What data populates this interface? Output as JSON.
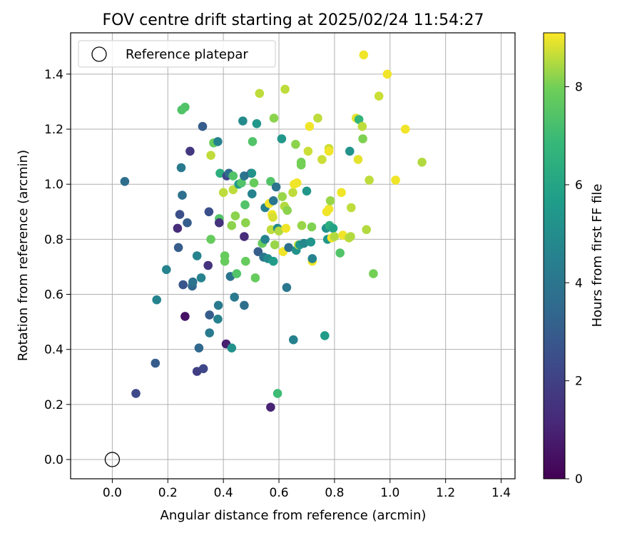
{
  "chart_data": {
    "type": "scatter",
    "title": "FOV centre drift starting at 2025/02/24 11:54:27",
    "xlabel": "Angular distance from reference (arcmin)",
    "ylabel": "Rotation from reference (arcmin)",
    "xlim": [
      -0.15,
      1.45
    ],
    "ylim": [
      -0.07,
      1.55
    ],
    "xticks": [
      0.0,
      0.2,
      0.4,
      0.6,
      0.8,
      1.0,
      1.2,
      1.4
    ],
    "xtick_labels": [
      "0.0",
      "0.2",
      "0.4",
      "0.6",
      "0.8",
      "1.0",
      "1.2",
      "1.4"
    ],
    "yticks": [
      0.0,
      0.2,
      0.4,
      0.6,
      0.8,
      1.0,
      1.2,
      1.4
    ],
    "ytick_labels": [
      "0.0",
      "0.2",
      "0.4",
      "0.6",
      "0.8",
      "1.0",
      "1.2",
      "1.4"
    ],
    "grid": true,
    "legend": {
      "position": "top-left",
      "entries": [
        {
          "label": "Reference platepar",
          "marker": "open-circle"
        }
      ]
    },
    "reference_point": {
      "x": 0.0,
      "y": 0.0
    },
    "colorbar": {
      "label": "Hours from first FF file",
      "colormap": "viridis",
      "range": [
        0,
        9.1
      ],
      "ticks": [
        0,
        2,
        4,
        6,
        8
      ],
      "tick_labels": [
        "0",
        "2",
        "4",
        "6",
        "8"
      ]
    },
    "points": [
      [
        0.045,
        1.01,
        3.7
      ],
      [
        0.085,
        0.24,
        2.3
      ],
      [
        0.155,
        0.35,
        3.0
      ],
      [
        0.16,
        0.58,
        4.6
      ],
      [
        0.195,
        0.69,
        4.6
      ],
      [
        0.235,
        0.84,
        1.3
      ],
      [
        0.238,
        0.77,
        3.0
      ],
      [
        0.243,
        0.89,
        2.5
      ],
      [
        0.248,
        1.06,
        4.2
      ],
      [
        0.25,
        1.27,
        7.4
      ],
      [
        0.252,
        0.96,
        3.7
      ],
      [
        0.255,
        0.635,
        2.7
      ],
      [
        0.262,
        1.28,
        7.4
      ],
      [
        0.262,
        0.52,
        0.5
      ],
      [
        0.27,
        0.86,
        3.0
      ],
      [
        0.28,
        1.12,
        1.7
      ],
      [
        0.288,
        0.63,
        3.4
      ],
      [
        0.29,
        0.645,
        3.9
      ],
      [
        0.305,
        0.74,
        4.6
      ],
      [
        0.305,
        0.32,
        1.9
      ],
      [
        0.312,
        0.405,
        3.4
      ],
      [
        0.32,
        0.66,
        4.6
      ],
      [
        0.325,
        1.21,
        3.0
      ],
      [
        0.328,
        0.33,
        2.2
      ],
      [
        0.345,
        0.705,
        1.5
      ],
      [
        0.348,
        0.9,
        2.5
      ],
      [
        0.35,
        0.525,
        3.0
      ],
      [
        0.35,
        0.46,
        4.2
      ],
      [
        0.355,
        0.8,
        7.8
      ],
      [
        0.355,
        1.105,
        8.6
      ],
      [
        0.365,
        1.15,
        7.8
      ],
      [
        0.38,
        1.155,
        4.6
      ],
      [
        0.38,
        0.51,
        4.6
      ],
      [
        0.382,
        0.56,
        4.2
      ],
      [
        0.385,
        0.875,
        7.4
      ],
      [
        0.385,
        0.86,
        1.5
      ],
      [
        0.388,
        1.04,
        6.4
      ],
      [
        0.4,
        0.97,
        8.6
      ],
      [
        0.405,
        0.72,
        7.8
      ],
      [
        0.405,
        0.74,
        7.8
      ],
      [
        0.41,
        0.42,
        0.9
      ],
      [
        0.412,
        1.03,
        2.2
      ],
      [
        0.42,
        1.04,
        3.6
      ],
      [
        0.425,
        0.665,
        3.9
      ],
      [
        0.43,
        0.85,
        8.2
      ],
      [
        0.43,
        0.405,
        5.2
      ],
      [
        0.435,
        0.98,
        8.6
      ],
      [
        0.435,
        1.03,
        7.4
      ],
      [
        0.44,
        0.59,
        4.2
      ],
      [
        0.443,
        0.885,
        8.2
      ],
      [
        0.448,
        0.675,
        7.4
      ],
      [
        0.455,
        1.0,
        5.6
      ],
      [
        0.465,
        1.005,
        7.4
      ],
      [
        0.47,
        1.23,
        4.9
      ],
      [
        0.475,
        1.03,
        3.9
      ],
      [
        0.475,
        0.81,
        1.3
      ],
      [
        0.475,
        0.56,
        3.7
      ],
      [
        0.478,
        0.925,
        7.4
      ],
      [
        0.48,
        0.72,
        7.8
      ],
      [
        0.48,
        0.86,
        8.2
      ],
      [
        0.5,
        1.04,
        2.2
      ],
      [
        0.502,
        1.04,
        5.2
      ],
      [
        0.503,
        0.965,
        4.6
      ],
      [
        0.505,
        1.155,
        7.4
      ],
      [
        0.51,
        1.005,
        7.8
      ],
      [
        0.515,
        0.66,
        7.8
      ],
      [
        0.52,
        1.22,
        5.4
      ],
      [
        0.525,
        0.755,
        3.0
      ],
      [
        0.53,
        1.33,
        8.6
      ],
      [
        0.54,
        0.785,
        7.8
      ],
      [
        0.545,
        0.735,
        4.0
      ],
      [
        0.55,
        0.8,
        4.6
      ],
      [
        0.55,
        0.915,
        4.6
      ],
      [
        0.56,
        0.73,
        4.9
      ],
      [
        0.565,
        0.93,
        9.0
      ],
      [
        0.57,
        1.01,
        7.4
      ],
      [
        0.57,
        0.19,
        1.0
      ],
      [
        0.572,
        0.835,
        8.6
      ],
      [
        0.575,
        0.89,
        9.0
      ],
      [
        0.578,
        0.88,
        8.8
      ],
      [
        0.58,
        0.94,
        4.0
      ],
      [
        0.58,
        0.72,
        5.6
      ],
      [
        0.582,
        1.24,
        8.2
      ],
      [
        0.585,
        0.78,
        8.3
      ],
      [
        0.59,
        0.99,
        3.9
      ],
      [
        0.595,
        0.84,
        4.9
      ],
      [
        0.595,
        0.24,
        7.0
      ],
      [
        0.6,
        0.83,
        8.5
      ],
      [
        0.61,
        1.165,
        5.4
      ],
      [
        0.612,
        0.955,
        8.3
      ],
      [
        0.615,
        0.755,
        9.0
      ],
      [
        0.62,
        0.92,
        8.5
      ],
      [
        0.622,
        1.345,
        8.6
      ],
      [
        0.625,
        0.84,
        9.0
      ],
      [
        0.628,
        0.625,
        4.1
      ],
      [
        0.63,
        0.905,
        8.2
      ],
      [
        0.635,
        0.77,
        3.7
      ],
      [
        0.65,
        0.97,
        8.6
      ],
      [
        0.652,
        0.435,
        4.5
      ],
      [
        0.655,
        1.0,
        9.0
      ],
      [
        0.66,
        1.145,
        8.2
      ],
      [
        0.662,
        0.76,
        5.2
      ],
      [
        0.665,
        1.005,
        9.0
      ],
      [
        0.67,
        0.78,
        8.7
      ],
      [
        0.675,
        0.78,
        5.5
      ],
      [
        0.68,
        1.08,
        8.0
      ],
      [
        0.68,
        1.07,
        8.0
      ],
      [
        0.682,
        0.85,
        8.3
      ],
      [
        0.69,
        0.785,
        4.8
      ],
      [
        0.7,
        0.975,
        5.4
      ],
      [
        0.705,
        1.12,
        8.7
      ],
      [
        0.71,
        1.21,
        9.0
      ],
      [
        0.715,
        0.79,
        5.3
      ],
      [
        0.718,
        0.845,
        8.1
      ],
      [
        0.72,
        0.72,
        9.0
      ],
      [
        0.72,
        0.73,
        4.6
      ],
      [
        0.74,
        1.24,
        8.6
      ],
      [
        0.755,
        1.09,
        8.7
      ],
      [
        0.765,
        0.45,
        5.6
      ],
      [
        0.77,
        0.84,
        5.2
      ],
      [
        0.772,
        0.9,
        9.0
      ],
      [
        0.775,
        0.8,
        5.4
      ],
      [
        0.78,
        1.13,
        8.7
      ],
      [
        0.78,
        1.12,
        9.0
      ],
      [
        0.78,
        0.91,
        9.0
      ],
      [
        0.782,
        0.85,
        6.4
      ],
      [
        0.785,
        0.94,
        8.3
      ],
      [
        0.79,
        0.805,
        9.0
      ],
      [
        0.795,
        0.84,
        5.9
      ],
      [
        0.8,
        0.81,
        8.5
      ],
      [
        0.82,
        0.75,
        7.4
      ],
      [
        0.825,
        0.97,
        9.0
      ],
      [
        0.83,
        0.815,
        9.0
      ],
      [
        0.852,
        0.805,
        8.6
      ],
      [
        0.855,
        1.12,
        5.2
      ],
      [
        0.858,
        0.81,
        8.5
      ],
      [
        0.86,
        0.915,
        8.6
      ],
      [
        0.878,
        1.24,
        8.9
      ],
      [
        0.885,
        1.09,
        8.9
      ],
      [
        0.888,
        1.235,
        6.7
      ],
      [
        0.9,
        1.21,
        8.6
      ],
      [
        0.902,
        1.165,
        8.1
      ],
      [
        0.905,
        1.47,
        9.0
      ],
      [
        0.915,
        0.835,
        8.5
      ],
      [
        0.925,
        1.015,
        8.6
      ],
      [
        0.94,
        0.675,
        8.0
      ],
      [
        0.96,
        1.32,
        8.7
      ],
      [
        0.99,
        1.4,
        9.0
      ],
      [
        1.02,
        1.015,
        9.0
      ],
      [
        1.055,
        1.2,
        9.0
      ],
      [
        1.115,
        1.08,
        8.5
      ]
    ]
  }
}
